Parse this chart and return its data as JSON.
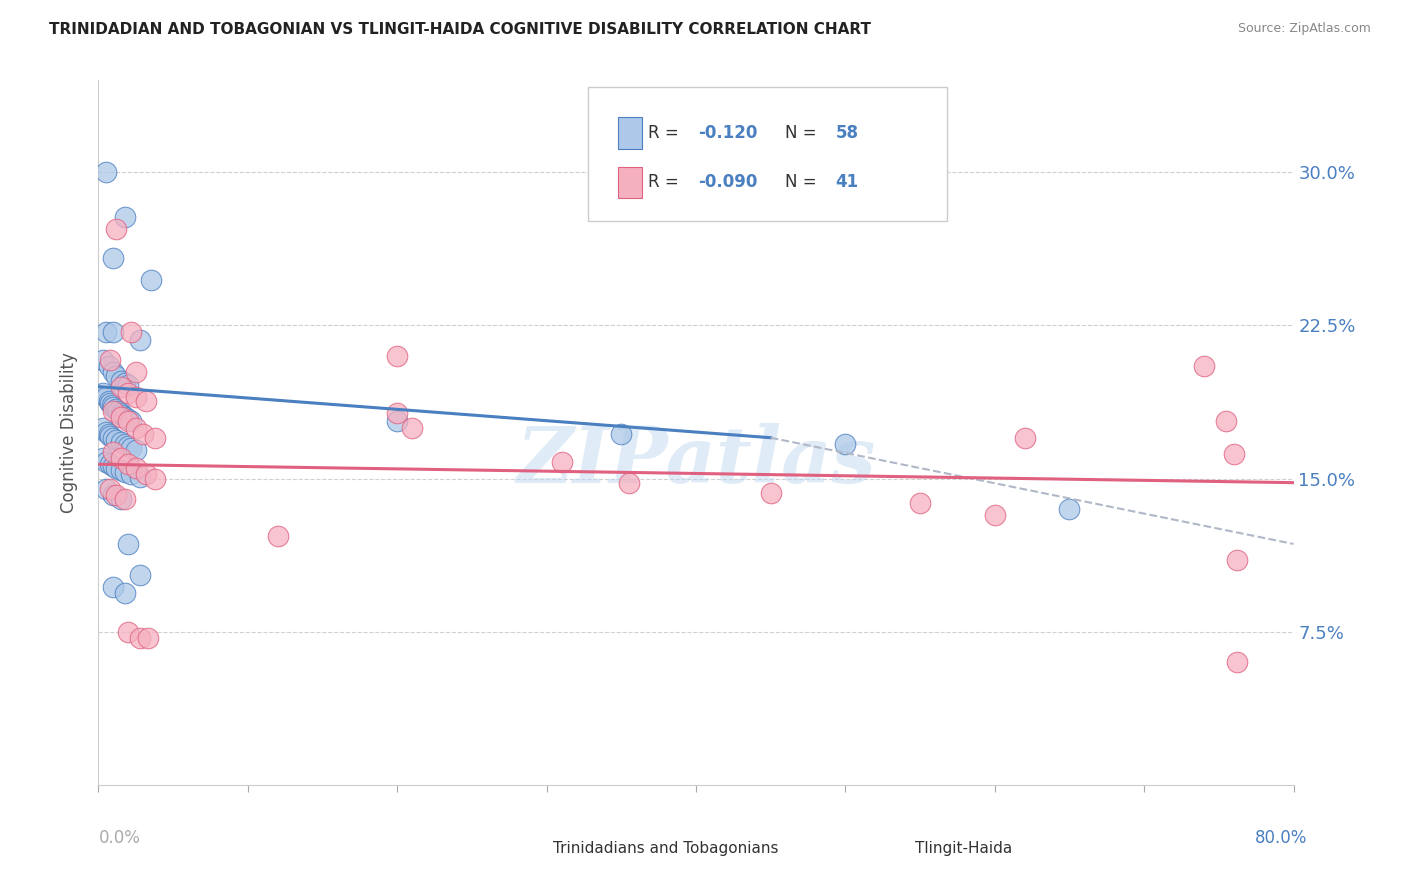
{
  "title": "TRINIDADIAN AND TOBAGONIAN VS TLINGIT-HAIDA COGNITIVE DISABILITY CORRELATION CHART",
  "source": "Source: ZipAtlas.com",
  "ylabel": "Cognitive Disability",
  "xlim": [
    0.0,
    0.8
  ],
  "ylim": [
    0.0,
    0.345
  ],
  "yticks": [
    0.075,
    0.15,
    0.225,
    0.3
  ],
  "ytick_labels": [
    "7.5%",
    "15.0%",
    "22.5%",
    "30.0%"
  ],
  "legend_r1_val": "-0.120",
  "legend_n1_val": "58",
  "legend_r2_val": "-0.090",
  "legend_n2_val": "41",
  "blue_color": "#adc8e8",
  "pink_color": "#f5b0c0",
  "blue_line_color": "#4a7fc0",
  "pink_line_color": "#e06080",
  "blue_scatter": [
    [
      0.005,
      0.3
    ],
    [
      0.01,
      0.258
    ],
    [
      0.018,
      0.278
    ],
    [
      0.035,
      0.247
    ],
    [
      0.005,
      0.222
    ],
    [
      0.01,
      0.222
    ],
    [
      0.028,
      0.218
    ],
    [
      0.003,
      0.208
    ],
    [
      0.007,
      0.205
    ],
    [
      0.01,
      0.202
    ],
    [
      0.012,
      0.2
    ],
    [
      0.015,
      0.198
    ],
    [
      0.018,
      0.197
    ],
    [
      0.02,
      0.196
    ],
    [
      0.003,
      0.192
    ],
    [
      0.005,
      0.19
    ],
    [
      0.007,
      0.188
    ],
    [
      0.008,
      0.187
    ],
    [
      0.009,
      0.186
    ],
    [
      0.01,
      0.185
    ],
    [
      0.012,
      0.184
    ],
    [
      0.013,
      0.183
    ],
    [
      0.015,
      0.182
    ],
    [
      0.016,
      0.181
    ],
    [
      0.018,
      0.18
    ],
    [
      0.02,
      0.179
    ],
    [
      0.022,
      0.178
    ],
    [
      0.003,
      0.175
    ],
    [
      0.005,
      0.173
    ],
    [
      0.007,
      0.172
    ],
    [
      0.008,
      0.171
    ],
    [
      0.01,
      0.17
    ],
    [
      0.012,
      0.169
    ],
    [
      0.015,
      0.168
    ],
    [
      0.018,
      0.167
    ],
    [
      0.02,
      0.166
    ],
    [
      0.022,
      0.165
    ],
    [
      0.025,
      0.164
    ],
    [
      0.003,
      0.16
    ],
    [
      0.005,
      0.158
    ],
    [
      0.008,
      0.157
    ],
    [
      0.01,
      0.156
    ],
    [
      0.012,
      0.155
    ],
    [
      0.015,
      0.154
    ],
    [
      0.018,
      0.153
    ],
    [
      0.022,
      0.152
    ],
    [
      0.028,
      0.151
    ],
    [
      0.005,
      0.145
    ],
    [
      0.01,
      0.142
    ],
    [
      0.015,
      0.14
    ],
    [
      0.02,
      0.118
    ],
    [
      0.028,
      0.103
    ],
    [
      0.01,
      0.097
    ],
    [
      0.018,
      0.094
    ],
    [
      0.2,
      0.178
    ],
    [
      0.35,
      0.172
    ],
    [
      0.5,
      0.167
    ],
    [
      0.65,
      0.135
    ]
  ],
  "pink_scatter": [
    [
      0.012,
      0.272
    ],
    [
      0.022,
      0.222
    ],
    [
      0.008,
      0.208
    ],
    [
      0.025,
      0.202
    ],
    [
      0.015,
      0.195
    ],
    [
      0.02,
      0.192
    ],
    [
      0.025,
      0.19
    ],
    [
      0.032,
      0.188
    ],
    [
      0.01,
      0.183
    ],
    [
      0.015,
      0.18
    ],
    [
      0.02,
      0.178
    ],
    [
      0.025,
      0.175
    ],
    [
      0.03,
      0.172
    ],
    [
      0.038,
      0.17
    ],
    [
      0.01,
      0.163
    ],
    [
      0.015,
      0.16
    ],
    [
      0.02,
      0.157
    ],
    [
      0.025,
      0.155
    ],
    [
      0.032,
      0.152
    ],
    [
      0.038,
      0.15
    ],
    [
      0.008,
      0.145
    ],
    [
      0.012,
      0.142
    ],
    [
      0.018,
      0.14
    ],
    [
      0.2,
      0.21
    ],
    [
      0.2,
      0.182
    ],
    [
      0.21,
      0.175
    ],
    [
      0.31,
      0.158
    ],
    [
      0.355,
      0.148
    ],
    [
      0.45,
      0.143
    ],
    [
      0.55,
      0.138
    ],
    [
      0.6,
      0.132
    ],
    [
      0.62,
      0.17
    ],
    [
      0.74,
      0.205
    ],
    [
      0.755,
      0.178
    ],
    [
      0.76,
      0.162
    ],
    [
      0.762,
      0.11
    ],
    [
      0.02,
      0.075
    ],
    [
      0.028,
      0.072
    ],
    [
      0.033,
      0.072
    ],
    [
      0.762,
      0.06
    ],
    [
      0.12,
      0.122
    ]
  ],
  "watermark": "ZIPatlas",
  "background_color": "#ffffff",
  "grid_color": "#d0d0d0"
}
